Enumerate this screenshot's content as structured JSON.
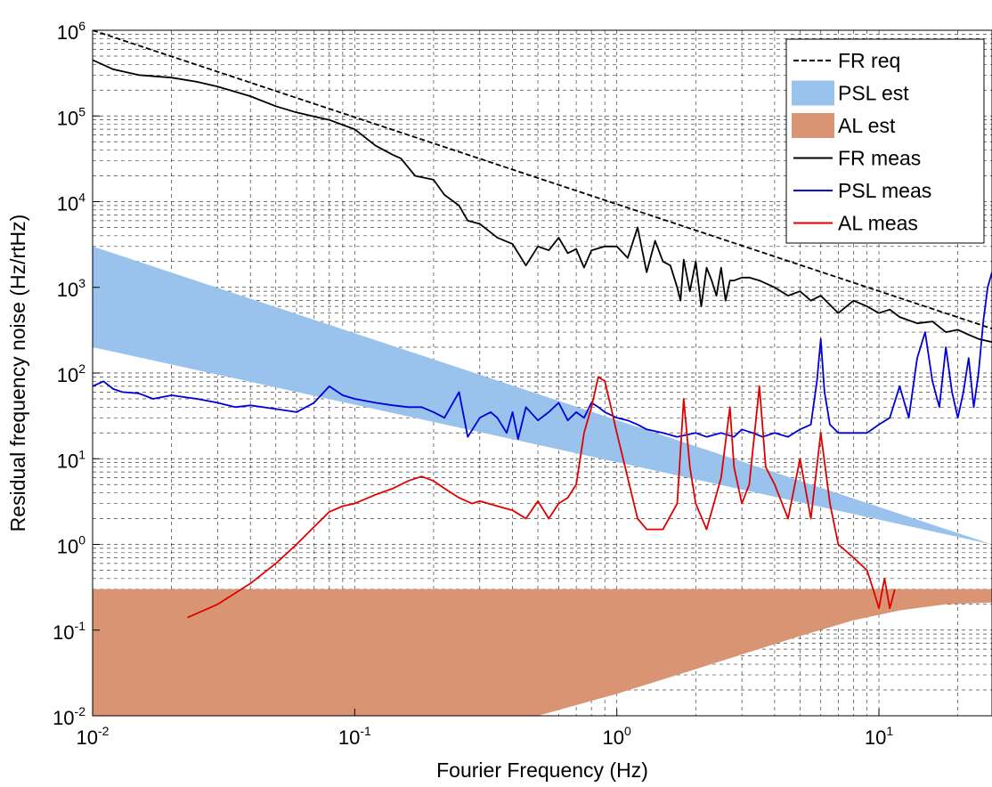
{
  "chart_data": {
    "type": "line",
    "xscale": "log",
    "yscale": "log",
    "xlim": [
      0.01,
      27
    ],
    "ylim": [
      0.01,
      1000000
    ],
    "grid": true,
    "legend_position": "top-right",
    "xlabel": "Fourier Frequency (Hz)",
    "ylabel": "Residual frequency noise (Hz/rtHz)",
    "x_ticks": [
      {
        "base": "10",
        "exp": "-2",
        "value": 0.01
      },
      {
        "base": "10",
        "exp": "-1",
        "value": 0.1
      },
      {
        "base": "10",
        "exp": "0",
        "value": 1
      },
      {
        "base": "10",
        "exp": "1",
        "value": 10
      }
    ],
    "y_ticks": [
      {
        "base": "10",
        "exp": "-2",
        "value": 0.01
      },
      {
        "base": "10",
        "exp": "-1",
        "value": 0.1
      },
      {
        "base": "10",
        "exp": "0",
        "value": 1
      },
      {
        "base": "10",
        "exp": "1",
        "value": 10
      },
      {
        "base": "10",
        "exp": "2",
        "value": 100
      },
      {
        "base": "10",
        "exp": "3",
        "value": 1000
      },
      {
        "base": "10",
        "exp": "4",
        "value": 10000
      },
      {
        "base": "10",
        "exp": "5",
        "value": 100000
      },
      {
        "base": "10",
        "exp": "6",
        "value": 1000000
      }
    ],
    "bands": [
      {
        "name": "PSL est",
        "color": "#99c2ec",
        "x": [
          0.01,
          27
        ],
        "upper": [
          3000,
          1.0
        ],
        "lower": [
          200,
          1.0
        ]
      },
      {
        "name": "AL est",
        "color": "#d99573",
        "x": [
          0.01,
          0.5,
          1,
          2,
          3,
          5,
          8,
          12,
          18,
          27
        ],
        "upper": [
          0.3,
          0.3,
          0.3,
          0.3,
          0.3,
          0.3,
          0.3,
          0.3,
          0.3,
          0.3
        ],
        "lower": [
          0.01,
          0.01,
          0.018,
          0.035,
          0.052,
          0.085,
          0.13,
          0.17,
          0.2,
          0.21
        ]
      }
    ],
    "series": [
      {
        "name": "FR req",
        "color": "#000000",
        "dash": true,
        "x": [
          0.01,
          27
        ],
        "y": [
          1000000,
          330
        ]
      },
      {
        "name": "FR meas",
        "color": "#000000",
        "x": [
          0.01,
          0.012,
          0.015,
          0.02,
          0.025,
          0.03,
          0.04,
          0.05,
          0.06,
          0.08,
          0.1,
          0.12,
          0.14,
          0.15,
          0.17,
          0.2,
          0.22,
          0.25,
          0.27,
          0.3,
          0.35,
          0.4,
          0.45,
          0.5,
          0.55,
          0.6,
          0.65,
          0.7,
          0.75,
          0.8,
          0.9,
          1.0,
          1.1,
          1.2,
          1.3,
          1.4,
          1.5,
          1.6,
          1.7,
          1.75,
          1.8,
          1.9,
          2.0,
          2.1,
          2.2,
          2.3,
          2.4,
          2.5,
          2.6,
          2.7,
          2.8,
          3.0,
          3.2,
          3.5,
          4.0,
          4.5,
          5.0,
          5.5,
          6.0,
          7.0,
          8.0,
          9.0,
          10.0,
          11,
          12,
          14,
          16,
          18,
          20,
          22,
          24,
          27
        ],
        "y": [
          450000,
          350000,
          300000,
          280000,
          250000,
          220000,
          170000,
          130000,
          110000,
          90000,
          70000,
          45000,
          35000,
          32000,
          20000,
          18000,
          12000,
          9000,
          6000,
          5500,
          3800,
          3200,
          1800,
          3000,
          2700,
          3800,
          2500,
          2800,
          1700,
          2700,
          3000,
          3000,
          2200,
          5000,
          1500,
          3500,
          2000,
          1800,
          1000,
          700,
          2100,
          900,
          2000,
          600,
          1700,
          1200,
          800,
          1700,
          700,
          1200,
          1200,
          1300,
          1300,
          1200,
          1000,
          800,
          900,
          700,
          800,
          500,
          700,
          600,
          500,
          550,
          450,
          380,
          400,
          300,
          320,
          280,
          250,
          230
        ]
      },
      {
        "name": "PSL meas",
        "color": "#0000d8",
        "x": [
          0.01,
          0.011,
          0.012,
          0.013,
          0.015,
          0.017,
          0.02,
          0.025,
          0.03,
          0.035,
          0.04,
          0.05,
          0.06,
          0.07,
          0.08,
          0.09,
          0.1,
          0.12,
          0.14,
          0.16,
          0.18,
          0.2,
          0.22,
          0.25,
          0.27,
          0.3,
          0.33,
          0.35,
          0.38,
          0.4,
          0.42,
          0.45,
          0.5,
          0.55,
          0.6,
          0.65,
          0.7,
          0.75,
          0.8,
          0.85,
          0.9,
          1.0,
          1.1,
          1.2,
          1.3,
          1.5,
          1.7,
          2.0,
          2.2,
          2.5,
          2.8,
          3.0,
          3.3,
          3.6,
          4.0,
          4.5,
          5.0,
          5.5,
          5.8,
          6.0,
          6.2,
          6.5,
          7.0,
          8.0,
          9.0,
          10.0,
          11,
          12,
          13,
          14,
          15,
          16,
          17,
          18,
          19,
          20,
          21,
          22,
          23,
          24,
          25,
          26,
          27
        ],
        "y": [
          70,
          80,
          65,
          60,
          58,
          50,
          55,
          50,
          45,
          40,
          42,
          38,
          35,
          45,
          70,
          55,
          50,
          45,
          42,
          40,
          40,
          35,
          30,
          60,
          18,
          30,
          35,
          30,
          20,
          35,
          17,
          40,
          28,
          35,
          45,
          28,
          35,
          30,
          45,
          40,
          35,
          30,
          28,
          25,
          22,
          20,
          18,
          20,
          18,
          20,
          18,
          22,
          20,
          18,
          20,
          18,
          22,
          25,
          80,
          250,
          60,
          25,
          20,
          20,
          20,
          25,
          30,
          70,
          30,
          150,
          300,
          80,
          40,
          200,
          60,
          30,
          60,
          150,
          40,
          100,
          400,
          1000,
          1500
        ]
      },
      {
        "name": "AL meas",
        "color": "#e00000",
        "x": [
          0.023,
          0.03,
          0.04,
          0.05,
          0.06,
          0.07,
          0.08,
          0.09,
          0.1,
          0.12,
          0.14,
          0.16,
          0.18,
          0.2,
          0.22,
          0.25,
          0.28,
          0.3,
          0.35,
          0.4,
          0.45,
          0.5,
          0.55,
          0.6,
          0.65,
          0.7,
          0.75,
          0.8,
          0.85,
          0.9,
          0.95,
          1.0,
          1.1,
          1.2,
          1.3,
          1.5,
          1.7,
          1.8,
          1.9,
          2.0,
          2.2,
          2.5,
          2.7,
          2.8,
          3.0,
          3.2,
          3.5,
          3.7,
          4.0,
          4.5,
          5.0,
          5.5,
          6.0,
          6.5,
          7.0,
          8.0,
          9.0,
          9.5,
          10.0,
          10.5,
          11.0,
          11.5
        ],
        "y": [
          0.14,
          0.2,
          0.35,
          0.6,
          1.0,
          1.6,
          2.4,
          2.8,
          3.0,
          3.8,
          4.5,
          5.5,
          6.2,
          5.5,
          4.5,
          3.5,
          3.0,
          3.2,
          2.8,
          2.5,
          2.0,
          3.2,
          2.0,
          3.0,
          3.5,
          5.0,
          20.0,
          40.0,
          90.0,
          80.0,
          40.0,
          20.0,
          6.0,
          2.0,
          1.5,
          1.5,
          3.0,
          50.0,
          8.0,
          3.0,
          1.5,
          6.0,
          40.0,
          8.0,
          3.0,
          5.0,
          70.0,
          8.0,
          5.0,
          2.0,
          10.0,
          2.0,
          20.0,
          3.0,
          1.0,
          0.7,
          0.5,
          0.3,
          0.18,
          0.4,
          0.18,
          0.3
        ]
      }
    ]
  }
}
